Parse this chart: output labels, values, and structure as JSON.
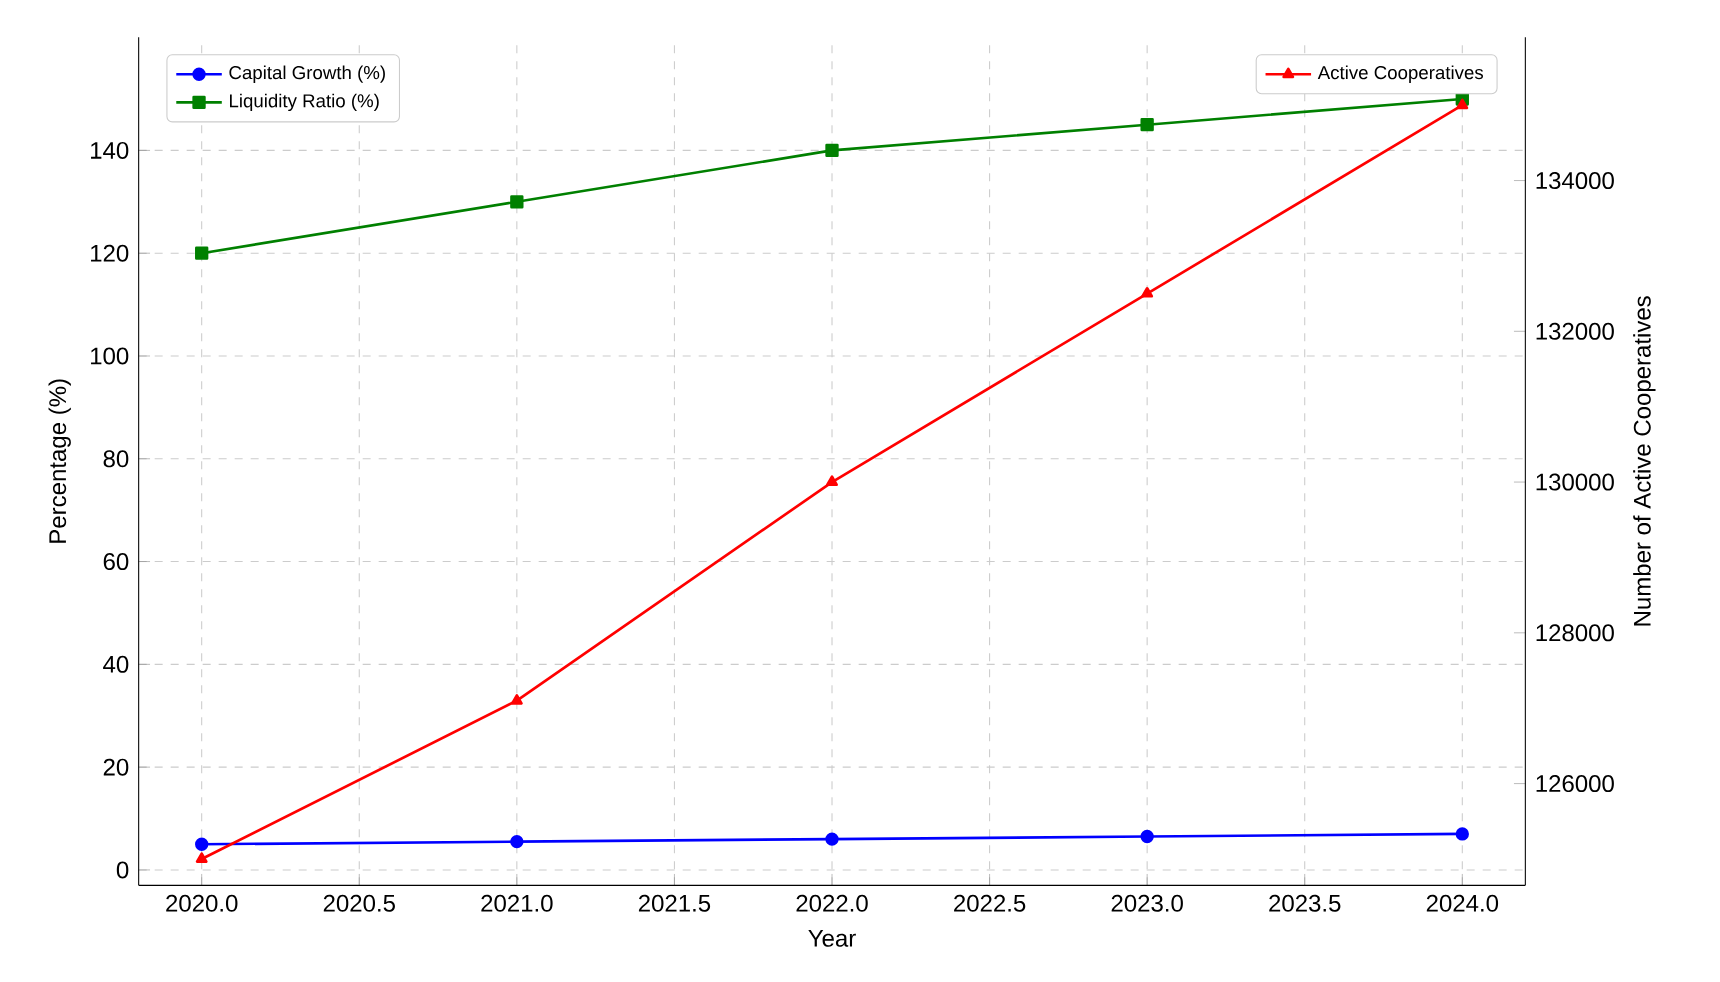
{
  "chart_data": {
    "type": "line",
    "xlabel": "Year",
    "ylabel": "Percentage (%)",
    "y2label": "Number of Active Cooperatives",
    "x": [
      2020,
      2021,
      2022,
      2023,
      2024
    ],
    "series": [
      {
        "name": "Capital Growth (%)",
        "color": "#0000ff",
        "values": [
          5,
          5.5,
          6,
          6.5,
          7
        ],
        "marker": "circle"
      },
      {
        "name": "Liquidity Ratio (%)",
        "color": "#008000",
        "values": [
          120,
          130,
          140,
          145,
          150
        ],
        "marker": "square"
      },
      {
        "name": "Active Cooperatives",
        "color": "#ff0000",
        "values": [
          125000,
          127100,
          130000,
          132500,
          135000
        ],
        "axis": "y2",
        "marker": "triangle"
      }
    ],
    "xlim": [
      2019.8,
      2024.2
    ],
    "xticks": [
      {
        "value": 2020,
        "label": "2020.0"
      },
      {
        "value": 2020.5,
        "label": "2020.5"
      },
      {
        "value": 2021,
        "label": "2021.0"
      },
      {
        "value": 2021.5,
        "label": "2021.5"
      },
      {
        "value": 2022,
        "label": "2022.0"
      },
      {
        "value": 2022.5,
        "label": "2022.5"
      },
      {
        "value": 2023,
        "label": "2023.0"
      },
      {
        "value": 2023.5,
        "label": "2023.5"
      },
      {
        "value": 2024,
        "label": "2024.0"
      }
    ],
    "ylim": [
      -3,
      162
    ],
    "yticks": [
      0,
      20,
      40,
      60,
      80,
      100,
      120,
      140
    ],
    "y2lim": [
      124650,
      135900
    ],
    "y2ticks": [
      126000,
      128000,
      130000,
      132000,
      134000
    ],
    "grid": true,
    "legend": "top left",
    "line_style": "solid"
  }
}
